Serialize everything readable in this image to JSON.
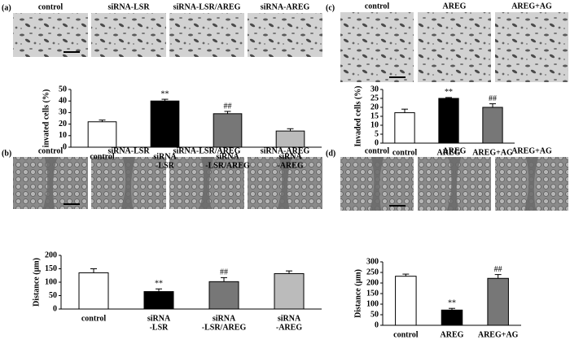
{
  "panels": [
    {
      "label": "(a)",
      "images": [
        "control",
        "siRNA-LSR",
        "siRNA-LSR/AREG",
        "siRNA-AREG"
      ]
    },
    {
      "label": "(b)",
      "images": [
        "control",
        "siRNA-LSR",
        "siRNA-LSR/AREG",
        "siRNA-AREG"
      ]
    },
    {
      "label": "(c)",
      "images": [
        "control",
        "AREG",
        "AREG+AG"
      ]
    },
    {
      "label": "(d)",
      "images": [
        "control",
        "AREG",
        "AREG+AG"
      ]
    }
  ],
  "chart_data": [
    {
      "type": "bar",
      "y_label": "invated cells (%)",
      "categories": [
        [
          "control"
        ],
        [
          "siRNA",
          "-LSR"
        ],
        [
          "siRNA",
          "-LSR/AREG"
        ],
        [
          "siRNA",
          "-AREG"
        ]
      ],
      "values": [
        22,
        40,
        29,
        14
      ],
      "errors": [
        1.5,
        1.5,
        2,
        2
      ],
      "colors": [
        "#ffffff",
        "#000000",
        "#777777",
        "#bbbbbb"
      ],
      "annotations": [
        {
          "index": 1,
          "text": "**"
        },
        {
          "index": 2,
          "text": "##"
        }
      ],
      "ylim": [
        0,
        50
      ],
      "yticks": [
        0,
        10,
        20,
        30,
        40,
        50
      ]
    },
    {
      "type": "bar",
      "y_label": "Distance (μm)",
      "categories": [
        [
          "control"
        ],
        [
          "siRNA",
          "-LSR"
        ],
        [
          "siRNA",
          "-LSR/AREG"
        ],
        [
          "siRNA",
          "-AREG"
        ]
      ],
      "values": [
        135,
        65,
        102,
        132
      ],
      "errors": [
        15,
        10,
        15,
        10
      ],
      "colors": [
        "#ffffff",
        "#000000",
        "#777777",
        "#bbbbbb"
      ],
      "annotations": [
        {
          "index": 1,
          "text": "**"
        },
        {
          "index": 2,
          "text": "##"
        }
      ],
      "ylim": [
        0,
        200
      ],
      "yticks": [
        0,
        50,
        100,
        150,
        200
      ]
    },
    {
      "type": "bar",
      "y_label": "Invaded cells (%)",
      "categories": [
        [
          "control"
        ],
        [
          "AREG"
        ],
        [
          "AREG+AG"
        ]
      ],
      "values": [
        17,
        25,
        20
      ],
      "errors": [
        2,
        0.5,
        2
      ],
      "colors": [
        "#ffffff",
        "#000000",
        "#777777"
      ],
      "annotations": [
        {
          "index": 1,
          "text": "**"
        },
        {
          "index": 2,
          "text": "##"
        }
      ],
      "ylim": [
        0,
        30
      ],
      "yticks": [
        0,
        5,
        10,
        15,
        20,
        25,
        30
      ]
    },
    {
      "type": "bar",
      "y_label": "Distance (μm)",
      "categories": [
        [
          "control"
        ],
        [
          "AREG"
        ],
        [
          "AREG+AG"
        ]
      ],
      "values": [
        232,
        72,
        222
      ],
      "errors": [
        10,
        8,
        18
      ],
      "colors": [
        "#ffffff",
        "#000000",
        "#777777"
      ],
      "annotations": [
        {
          "index": 1,
          "text": "**"
        },
        {
          "index": 2,
          "text": "##"
        }
      ],
      "ylim": [
        0,
        300
      ],
      "yticks": [
        0,
        50,
        100,
        150,
        200,
        250,
        300
      ]
    }
  ]
}
